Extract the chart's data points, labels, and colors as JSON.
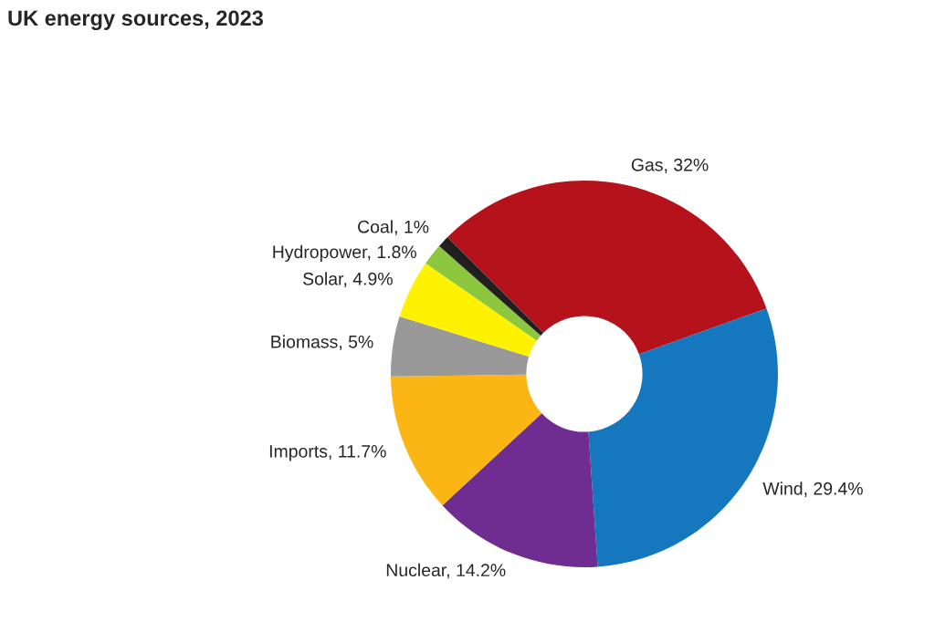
{
  "chart_data": {
    "type": "donut",
    "title": "UK energy sources, 2023",
    "categories": [
      "Gas",
      "Wind",
      "Nuclear",
      "Imports",
      "Biomass",
      "Solar",
      "Hydropower",
      "Coal"
    ],
    "values": [
      32,
      29.4,
      14.2,
      11.7,
      5,
      4.9,
      1.8,
      1
    ],
    "value_labels": [
      "32%",
      "29.4%",
      "14.2%",
      "11.7%",
      "5%",
      "4.9%",
      "1.8%",
      "1%"
    ],
    "colors": [
      "#b5121b",
      "#1577be",
      "#6f2c91",
      "#fbb615",
      "#999999",
      "#fff200",
      "#8dc63f",
      "#231f20"
    ]
  }
}
